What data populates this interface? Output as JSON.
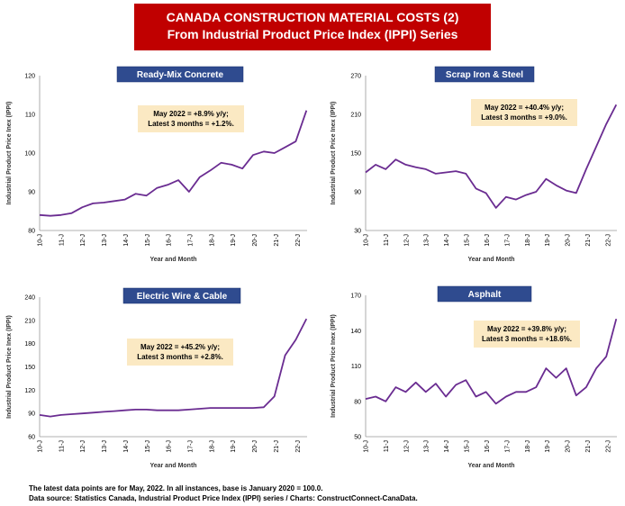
{
  "title": {
    "line1": "CANADA CONSTRUCTION MATERIAL COSTS (2)",
    "line2": "From Industrial Product Price Index (IPPI) Series"
  },
  "footer": {
    "line1": "The latest data points are for May, 2022. In all instances, base is January 2020 = 100.0.",
    "line2": "Data source: Statistics Canada, Industrial Product Price Index (IPPI) series / Charts: ConstructConnect-CanaData."
  },
  "colors": {
    "banner": "#c00000",
    "title_box": "#2f4b8f",
    "note_box": "#fbe9c3",
    "line": "#6a2c91"
  },
  "chart_data": [
    {
      "type": "line",
      "title": "Ready-Mix Concrete",
      "ylabel": "Industrial Product Price Inex (IPPI)",
      "xlabel": "Year and Month",
      "ylim": [
        80,
        120
      ],
      "yticks": [
        80,
        90,
        100,
        110,
        120
      ],
      "xticks": [
        "10-J",
        "11-J",
        "12-J",
        "13-J",
        "14-J",
        "15-J",
        "16-J",
        "17-J",
        "18-J",
        "19-J",
        "20-J",
        "21-J",
        "22-J"
      ],
      "annotation": [
        "May 2022 = +8.9% y/y;",
        "Latest 3 months = +1.2%."
      ],
      "x": [
        "10-J",
        "10-J",
        "11-J",
        "11-J",
        "12-J",
        "12-J",
        "13-J",
        "13-J",
        "14-J",
        "14-J",
        "15-J",
        "15-J",
        "16-J",
        "16-J",
        "17-J",
        "17-J",
        "18-J",
        "18-J",
        "19-J",
        "19-J",
        "20-J",
        "20-J",
        "21-J",
        "21-J",
        "22-J",
        "22-J"
      ],
      "values": [
        84,
        83.8,
        84,
        84.5,
        86,
        87,
        87.2,
        87.6,
        88,
        89.5,
        89,
        91,
        91.8,
        93,
        90,
        93.8,
        95.5,
        97.5,
        97,
        96,
        99.5,
        100.4,
        100,
        101.5,
        103,
        111
      ]
    },
    {
      "type": "line",
      "title": "Scrap Iron & Steel",
      "ylabel": "Industrial Product Price Inex (IPPI)",
      "xlabel": "Year and Month",
      "ylim": [
        30,
        270
      ],
      "yticks": [
        30,
        90,
        150,
        210,
        270
      ],
      "xticks": [
        "10-J",
        "11-J",
        "12-J",
        "13-J",
        "14-J",
        "15-J",
        "16-J",
        "17-J",
        "18-J",
        "19-J",
        "20-J",
        "21-J",
        "22-J"
      ],
      "annotation": [
        "May 2022 = +40.4% y/y;",
        "Latest 3 months = +9.0%."
      ],
      "x": [
        "10-J",
        "10-J",
        "11-J",
        "11-J",
        "12-J",
        "12-J",
        "13-J",
        "13-J",
        "14-J",
        "14-J",
        "15-J",
        "15-J",
        "16-J",
        "16-J",
        "17-J",
        "17-J",
        "18-J",
        "18-J",
        "19-J",
        "19-J",
        "20-J",
        "20-J",
        "21-J",
        "21-J",
        "22-J",
        "22-J"
      ],
      "values": [
        120,
        132,
        125,
        140,
        132,
        128,
        125,
        118,
        120,
        122,
        118,
        95,
        88,
        65,
        82,
        78,
        85,
        90,
        110,
        100,
        92,
        88,
        125,
        160,
        195,
        225
      ]
    },
    {
      "type": "line",
      "title": "Electric Wire & Cable",
      "ylabel": "Industrial Product Price Inex (IPPI)",
      "xlabel": "Year and Month",
      "ylim": [
        60,
        240
      ],
      "yticks": [
        60,
        90,
        120,
        150,
        180,
        210,
        240
      ],
      "xticks": [
        "10-J",
        "11-J",
        "12-J",
        "13-J",
        "14-J",
        "15-J",
        "16-J",
        "17-J",
        "18-J",
        "19-J",
        "20-J",
        "21-J",
        "22-J"
      ],
      "annotation": [
        "May 2022 = +45.2% y/y;",
        "Latest 3 months = +2.8%."
      ],
      "x": [
        "10-J",
        "10-J",
        "11-J",
        "11-J",
        "12-J",
        "12-J",
        "13-J",
        "13-J",
        "14-J",
        "14-J",
        "15-J",
        "15-J",
        "16-J",
        "16-J",
        "17-J",
        "17-J",
        "18-J",
        "18-J",
        "19-J",
        "19-J",
        "20-J",
        "20-J",
        "21-J",
        "21-J",
        "22-J",
        "22-J"
      ],
      "values": [
        88,
        86,
        88,
        89,
        90,
        91,
        92,
        93,
        94,
        95,
        95,
        94,
        94,
        94,
        95,
        96,
        97,
        97,
        97,
        97,
        97,
        98,
        112,
        165,
        185,
        212
      ]
    },
    {
      "type": "line",
      "title": "Asphalt",
      "ylabel": "Industrial Product Price Inex (IPPI)",
      "xlabel": "Year and Month",
      "ylim": [
        50,
        170
      ],
      "yticks": [
        50,
        80,
        110,
        140,
        170
      ],
      "xticks": [
        "10-J",
        "11-J",
        "12-J",
        "13-J",
        "14-J",
        "15-J",
        "16-J",
        "17-J",
        "18-J",
        "19-J",
        "20-J",
        "21-J",
        "22-J"
      ],
      "annotation": [
        "May 2022 = +39.8% y/y;",
        "Latest 3 months = +18.6%."
      ],
      "x": [
        "10-J",
        "10-J",
        "11-J",
        "11-J",
        "12-J",
        "12-J",
        "13-J",
        "13-J",
        "14-J",
        "14-J",
        "15-J",
        "15-J",
        "16-J",
        "16-J",
        "17-J",
        "17-J",
        "18-J",
        "18-J",
        "19-J",
        "19-J",
        "20-J",
        "20-J",
        "21-J",
        "21-J",
        "22-J",
        "22-J"
      ],
      "values": [
        82,
        84,
        80,
        92,
        88,
        96,
        88,
        95,
        84,
        94,
        98,
        84,
        88,
        78,
        84,
        88,
        88,
        92,
        108,
        100,
        108,
        85,
        92,
        108,
        118,
        150
      ]
    }
  ]
}
